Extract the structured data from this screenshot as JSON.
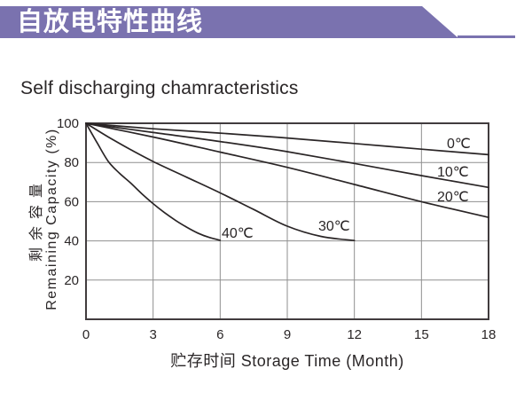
{
  "banner": {
    "title": "自放电特性曲线",
    "bg_color": "#7a72af",
    "text_color": "#ffffff"
  },
  "chart_data": {
    "type": "line",
    "title": "Self discharging chamracteristics",
    "xlabel": "贮存时间 Storage Time (Month)",
    "ylabel_line1": "剩余容量",
    "ylabel_line2": "Remaining Capacity (%)",
    "xlim": [
      0,
      18
    ],
    "ylim": [
      0,
      100
    ],
    "x_ticks": [
      0,
      3,
      6,
      9,
      12,
      15,
      18
    ],
    "y_ticks": [
      20,
      40,
      60,
      80,
      100
    ],
    "grid": true,
    "legend_position": "labels-on-plot",
    "line_color": "#2a2526",
    "grid_color": "#8f8f8f",
    "axis_color": "#413c3e",
    "tick_label_color": "#2a2627",
    "series": [
      {
        "name": "0℃",
        "temperature_c": 0,
        "points": [
          [
            0,
            100
          ],
          [
            3,
            97.2
          ],
          [
            6,
            95
          ],
          [
            9,
            92.5
          ],
          [
            12,
            89.7
          ],
          [
            15,
            86.8
          ],
          [
            18,
            84
          ]
        ]
      },
      {
        "name": "10℃",
        "temperature_c": 10,
        "points": [
          [
            0,
            100
          ],
          [
            3,
            95.3
          ],
          [
            6,
            90.7
          ],
          [
            9,
            85.5
          ],
          [
            12,
            79.5
          ],
          [
            15,
            73.3
          ],
          [
            18,
            67.3
          ]
        ]
      },
      {
        "name": "20℃",
        "temperature_c": 20,
        "points": [
          [
            0,
            100
          ],
          [
            3,
            93
          ],
          [
            6,
            85.3
          ],
          [
            9,
            77.5
          ],
          [
            12,
            68.8
          ],
          [
            15,
            60
          ],
          [
            18,
            52
          ]
        ]
      },
      {
        "name": "30℃",
        "temperature_c": 30,
        "points": [
          [
            0,
            100
          ],
          [
            1,
            93
          ],
          [
            2,
            86.5
          ],
          [
            3,
            80.5
          ],
          [
            4.5,
            72.5
          ],
          [
            6,
            64.5
          ],
          [
            7.5,
            56
          ],
          [
            9,
            47.5
          ],
          [
            10.5,
            42.3
          ],
          [
            12,
            40.2
          ]
        ]
      },
      {
        "name": "40℃",
        "temperature_c": 40,
        "points": [
          [
            0,
            100
          ],
          [
            0.5,
            90
          ],
          [
            1,
            80.5
          ],
          [
            1.5,
            74.5
          ],
          [
            2,
            69.5
          ],
          [
            2.5,
            64
          ],
          [
            3,
            59
          ],
          [
            3.5,
            54.5
          ],
          [
            4,
            50.5
          ],
          [
            4.5,
            47
          ],
          [
            5,
            44
          ],
          [
            5.5,
            41.8
          ],
          [
            6,
            40.3
          ]
        ]
      }
    ]
  }
}
